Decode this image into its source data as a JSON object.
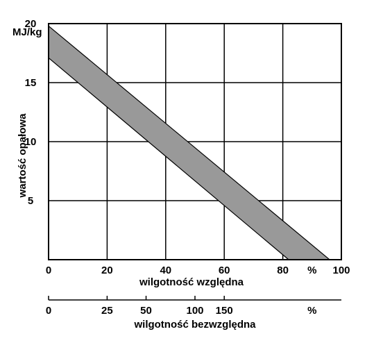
{
  "chart_data": {
    "type": "area",
    "title": "",
    "ylabel": "wartość opałowa",
    "yunit": "MJ/kg",
    "ylim": [
      0,
      20
    ],
    "yticks": [
      5,
      10,
      15,
      20
    ],
    "grid": true,
    "x_axis": {
      "label": "wilgotność względna",
      "unit": "%",
      "xlim": [
        0,
        100
      ],
      "ticks": [
        "0",
        "20",
        "40",
        "60",
        "80",
        "100"
      ]
    },
    "secondary_x_axis": {
      "label": "wilgotność bezwzględna",
      "unit": "%",
      "ticks": [
        {
          "label": "0",
          "relative": 0
        },
        {
          "label": "25",
          "relative": 20
        },
        {
          "label": "50",
          "relative": 33.3
        },
        {
          "label": "100",
          "relative": 50
        },
        {
          "label": "150",
          "relative": 60
        }
      ]
    },
    "band": {
      "upper": [
        {
          "x": 0,
          "y": 19.8
        },
        {
          "x": 96,
          "y": 0
        }
      ],
      "lower": [
        {
          "x": 0,
          "y": 17.1
        },
        {
          "x": 82,
          "y": 0
        }
      ],
      "fill": "#999999"
    }
  }
}
